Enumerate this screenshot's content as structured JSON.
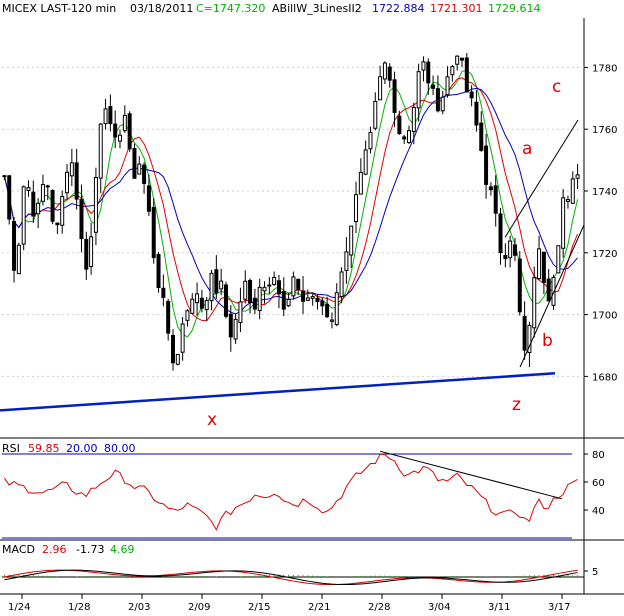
{
  "header": {
    "symbol": "MICEX LAST-120 min",
    "date": "03/18/2011",
    "close": "C=1747.320",
    "indicator": "ABillW_3LinesII2",
    "ind_v1": "1722.884",
    "ind_v2": "1721.301",
    "ind_v3": "1729.614"
  },
  "rsi_header": {
    "label": "RSI",
    "value": "59.85",
    "low": "20.00",
    "high": "80.00"
  },
  "macd_header": {
    "label": "MACD",
    "v1": "2.96",
    "v2": "-1.73",
    "v3": "4.69"
  },
  "colors": {
    "candle": "#000000",
    "line_blue": "#0000c8",
    "line_red": "#e00000",
    "line_green": "#00b400",
    "trendline": "#0020c0",
    "histogram": "#2a9d2a",
    "label_red": "#e00000"
  },
  "chart_data": {
    "type": "candlestick",
    "x_tick_labels": [
      "1/24",
      "1/28",
      "2/03",
      "2/09",
      "2/15",
      "2/21",
      "2/28",
      "3/04",
      "3/11",
      "3/17"
    ],
    "y_ticks": [
      1680,
      1700,
      1720,
      1740,
      1760,
      1780
    ],
    "ylim": [
      1662,
      1796
    ],
    "price_waypoints": [
      [
        0,
        1745
      ],
      [
        5,
        1730
      ],
      [
        10,
        1715
      ],
      [
        15,
        1725
      ],
      [
        20,
        1745
      ],
      [
        25,
        1740
      ],
      [
        30,
        1732
      ],
      [
        35,
        1735
      ],
      [
        40,
        1745
      ],
      [
        45,
        1740
      ],
      [
        50,
        1725
      ],
      [
        55,
        1730
      ],
      [
        60,
        1745
      ],
      [
        65,
        1752
      ],
      [
        70,
        1745
      ],
      [
        75,
        1728
      ],
      [
        80,
        1715
      ],
      [
        85,
        1720
      ],
      [
        90,
        1740
      ],
      [
        95,
        1762
      ],
      [
        100,
        1770
      ],
      [
        105,
        1760
      ],
      [
        110,
        1755
      ],
      [
        115,
        1760
      ],
      [
        120,
        1765
      ],
      [
        125,
        1750
      ],
      [
        130,
        1745
      ],
      [
        135,
        1750
      ],
      [
        140,
        1740
      ],
      [
        145,
        1730
      ],
      [
        150,
        1715
      ],
      [
        155,
        1708
      ],
      [
        160,
        1700
      ],
      [
        165,
        1690
      ],
      [
        170,
        1682
      ],
      [
        175,
        1692
      ],
      [
        180,
        1705
      ],
      [
        185,
        1700
      ],
      [
        190,
        1710
      ],
      [
        195,
        1702
      ],
      [
        200,
        1705
      ],
      [
        205,
        1712
      ],
      [
        210,
        1708
      ],
      [
        215,
        1710
      ],
      [
        220,
        1700
      ],
      [
        225,
        1694
      ],
      [
        230,
        1698
      ],
      [
        235,
        1705
      ],
      [
        240,
        1710
      ],
      [
        245,
        1702
      ],
      [
        250,
        1704
      ],
      [
        255,
        1712
      ],
      [
        260,
        1708
      ],
      [
        265,
        1713
      ],
      [
        270,
        1715
      ],
      [
        275,
        1702
      ],
      [
        280,
        1700
      ],
      [
        285,
        1708
      ],
      [
        290,
        1712
      ],
      [
        295,
        1705
      ],
      [
        300,
        1704
      ],
      [
        305,
        1708
      ],
      [
        310,
        1702
      ],
      [
        315,
        1704
      ],
      [
        320,
        1700
      ],
      [
        325,
        1698
      ],
      [
        330,
        1708
      ],
      [
        335,
        1712
      ],
      [
        340,
        1722
      ],
      [
        345,
        1730
      ],
      [
        350,
        1738
      ],
      [
        355,
        1745
      ],
      [
        360,
        1752
      ],
      [
        365,
        1758
      ],
      [
        370,
        1770
      ],
      [
        375,
        1778
      ],
      [
        380,
        1782
      ],
      [
        385,
        1772
      ],
      [
        390,
        1765
      ],
      [
        395,
        1755
      ],
      [
        400,
        1760
      ],
      [
        405,
        1762
      ],
      [
        410,
        1775
      ],
      [
        415,
        1782
      ],
      [
        420,
        1778
      ],
      [
        425,
        1772
      ],
      [
        430,
        1768
      ],
      [
        435,
        1770
      ],
      [
        440,
        1776
      ],
      [
        445,
        1780
      ],
      [
        450,
        1786
      ],
      [
        455,
        1780
      ],
      [
        460,
        1772
      ],
      [
        465,
        1768
      ],
      [
        470,
        1760
      ],
      [
        475,
        1752
      ],
      [
        480,
        1742
      ],
      [
        485,
        1738
      ],
      [
        490,
        1728
      ],
      [
        495,
        1718
      ],
      [
        500,
        1722
      ],
      [
        505,
        1728
      ],
      [
        510,
        1710
      ],
      [
        515,
        1690
      ],
      [
        520,
        1685
      ],
      [
        525,
        1708
      ],
      [
        530,
        1722
      ],
      [
        535,
        1715
      ],
      [
        540,
        1705
      ],
      [
        545,
        1712
      ],
      [
        550,
        1722
      ],
      [
        555,
        1738
      ],
      [
        560,
        1735
      ],
      [
        565,
        1742
      ],
      [
        570,
        1747
      ]
    ],
    "rsi": {
      "ylim": [
        20,
        90
      ],
      "y_ticks": [
        40,
        60,
        80
      ],
      "levels": [
        20,
        80
      ],
      "waypoints": [
        [
          0,
          60
        ],
        [
          20,
          56
        ],
        [
          40,
          52
        ],
        [
          60,
          58
        ],
        [
          80,
          50
        ],
        [
          100,
          62
        ],
        [
          110,
          66
        ],
        [
          120,
          62
        ],
        [
          130,
          56
        ],
        [
          140,
          54
        ],
        [
          150,
          48
        ],
        [
          160,
          42
        ],
        [
          170,
          38
        ],
        [
          180,
          44
        ],
        [
          190,
          40
        ],
        [
          200,
          36
        ],
        [
          210,
          28
        ],
        [
          220,
          36
        ],
        [
          230,
          42
        ],
        [
          240,
          46
        ],
        [
          250,
          52
        ],
        [
          260,
          50
        ],
        [
          270,
          54
        ],
        [
          280,
          46
        ],
        [
          290,
          44
        ],
        [
          300,
          48
        ],
        [
          310,
          44
        ],
        [
          320,
          38
        ],
        [
          330,
          46
        ],
        [
          340,
          56
        ],
        [
          350,
          64
        ],
        [
          360,
          70
        ],
        [
          370,
          76
        ],
        [
          380,
          80
        ],
        [
          390,
          74
        ],
        [
          400,
          64
        ],
        [
          410,
          68
        ],
        [
          420,
          70
        ],
        [
          430,
          62
        ],
        [
          440,
          60
        ],
        [
          450,
          64
        ],
        [
          460,
          58
        ],
        [
          470,
          52
        ],
        [
          480,
          44
        ],
        [
          490,
          38
        ],
        [
          500,
          36
        ],
        [
          510,
          40
        ],
        [
          520,
          30
        ],
        [
          530,
          46
        ],
        [
          540,
          42
        ],
        [
          550,
          50
        ],
        [
          560,
          56
        ],
        [
          570,
          60
        ]
      ]
    },
    "macd": {
      "y_ticks": [
        5
      ]
    },
    "annotations": [
      "x",
      "z",
      "a",
      "b",
      "c"
    ]
  }
}
